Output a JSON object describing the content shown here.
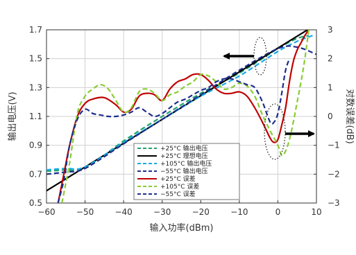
{
  "chart_data": {
    "type": "line",
    "xlabel": "输入功率(dBm)",
    "ylabel": "输出电压(V)",
    "y2label": "对数误差(dB)",
    "xlim": [
      -60,
      10
    ],
    "ylim": [
      0.5,
      1.7
    ],
    "y2lim": [
      -3,
      3
    ],
    "xticks": [
      -60,
      -50,
      -40,
      -30,
      -20,
      -10,
      0,
      10
    ],
    "yticks": [
      0.5,
      0.7,
      0.9,
      1.1,
      1.3,
      1.5,
      1.7
    ],
    "y2ticks": [
      -3,
      -2,
      -1,
      0,
      1,
      2,
      3
    ],
    "grid": true,
    "legend_position": "bottom-center",
    "series": [
      {
        "name": "+25°C 输出电压",
        "axis": "left",
        "color": "#1fa36b",
        "dash": "7,4",
        "width": 2.2,
        "x": [
          -60,
          -55,
          -50,
          -40,
          -30,
          -20,
          -10,
          0,
          5,
          8
        ],
        "y": [
          0.72,
          0.73,
          0.74,
          0.93,
          1.1,
          1.26,
          1.4,
          1.57,
          1.64,
          1.66
        ]
      },
      {
        "name": "+25°C 理想电压",
        "axis": "left",
        "color": "#000000",
        "dash": "",
        "width": 2.2,
        "x": [
          -60,
          8
        ],
        "y": [
          0.585,
          1.705
        ]
      },
      {
        "name": "+105°C 输出电压",
        "axis": "left",
        "color": "#19a9e6",
        "dash": "7,4",
        "width": 2.2,
        "x": [
          -60,
          -55,
          -50,
          -40,
          -30,
          -20,
          -10,
          0,
          5,
          9
        ],
        "y": [
          0.73,
          0.74,
          0.75,
          0.92,
          1.08,
          1.24,
          1.38,
          1.55,
          1.62,
          1.66
        ]
      },
      {
        "name": "−55°C 输出电压",
        "axis": "left",
        "color": "#1c2e8c",
        "dash": "7,4",
        "width": 2.2,
        "x": [
          -60,
          -55,
          -50,
          -40,
          -30,
          -20,
          -10,
          0,
          5,
          10
        ],
        "y": [
          0.7,
          0.715,
          0.74,
          0.91,
          1.08,
          1.25,
          1.42,
          1.57,
          1.58,
          1.53
        ]
      },
      {
        "name": "+25°C 误差",
        "axis": "right",
        "color": "#c00000",
        "dash": "",
        "width": 2.2,
        "x": [
          -57,
          -55.5,
          -54,
          -52,
          -50,
          -48,
          -45,
          -42,
          -40,
          -38,
          -36,
          -34,
          -32,
          -30,
          -28,
          -26,
          -24,
          -22,
          -20,
          -18,
          -16,
          -14,
          -12,
          -10,
          -8,
          -6,
          -4,
          -2,
          -1,
          0,
          1,
          2,
          3,
          4,
          5,
          6,
          7,
          8
        ],
        "y": [
          -3.0,
          -2.0,
          -1.0,
          0.0,
          0.45,
          0.6,
          0.65,
          0.4,
          0.15,
          0.25,
          0.7,
          0.8,
          0.75,
          0.55,
          0.95,
          1.2,
          1.3,
          1.45,
          1.45,
          1.25,
          0.95,
          0.8,
          0.8,
          0.85,
          0.7,
          0.3,
          -0.2,
          -0.75,
          -0.9,
          -0.8,
          -0.3,
          0.3,
          1.2,
          1.9,
          2.3,
          2.55,
          2.8,
          3.0
        ]
      },
      {
        "name": "+105°C 误差",
        "axis": "right",
        "color": "#88cc33",
        "dash": "7,4",
        "width": 2.2,
        "x": [
          -56,
          -54,
          -52,
          -50,
          -48,
          -46,
          -44,
          -42,
          -40,
          -38,
          -36,
          -34,
          -32,
          -30,
          -28,
          -26,
          -24,
          -22,
          -20,
          -18,
          -16,
          -14,
          -12,
          -10,
          -8,
          -6,
          -4,
          -2,
          0,
          1,
          2,
          3,
          4,
          5,
          6,
          7,
          8
        ],
        "y": [
          -3.0,
          -1.6,
          0.1,
          0.7,
          0.95,
          1.1,
          0.95,
          0.55,
          0.15,
          0.3,
          0.85,
          0.95,
          0.8,
          0.55,
          0.75,
          0.85,
          1.05,
          1.2,
          1.45,
          1.4,
          1.2,
          0.95,
          1.0,
          1.15,
          1.05,
          0.7,
          0.05,
          -0.5,
          -1.0,
          -1.35,
          -1.2,
          -0.8,
          -0.2,
          0.5,
          1.2,
          2.0,
          3.0
        ]
      },
      {
        "name": "−55°C 误差",
        "axis": "right",
        "color": "#1c2e8c",
        "dash": "7,4",
        "width": 2.2,
        "x": [
          -57,
          -55.5,
          -54,
          -52,
          -50,
          -48,
          -46,
          -44,
          -42,
          -40,
          -38,
          -36,
          -34,
          -32,
          -30,
          -28,
          -26,
          -24,
          -22,
          -20,
          -18,
          -16,
          -14,
          -12,
          -10,
          -8,
          -6,
          -4,
          -2,
          -1,
          0,
          1,
          2,
          3
        ],
        "y": [
          -3.0,
          -2.2,
          -1.0,
          -0.1,
          0.25,
          0.1,
          0.05,
          0.0,
          0.0,
          0.05,
          0.15,
          0.3,
          0.15,
          0.0,
          0.1,
          0.3,
          0.5,
          0.6,
          0.75,
          0.9,
          1.0,
          1.2,
          1.3,
          1.3,
          1.2,
          1.1,
          1.0,
          0.5,
          -0.2,
          -0.2,
          0.1,
          0.8,
          1.6,
          2.0
        ]
      }
    ],
    "annotations": {
      "left_arrow": "left",
      "right_arrow": "right"
    }
  }
}
